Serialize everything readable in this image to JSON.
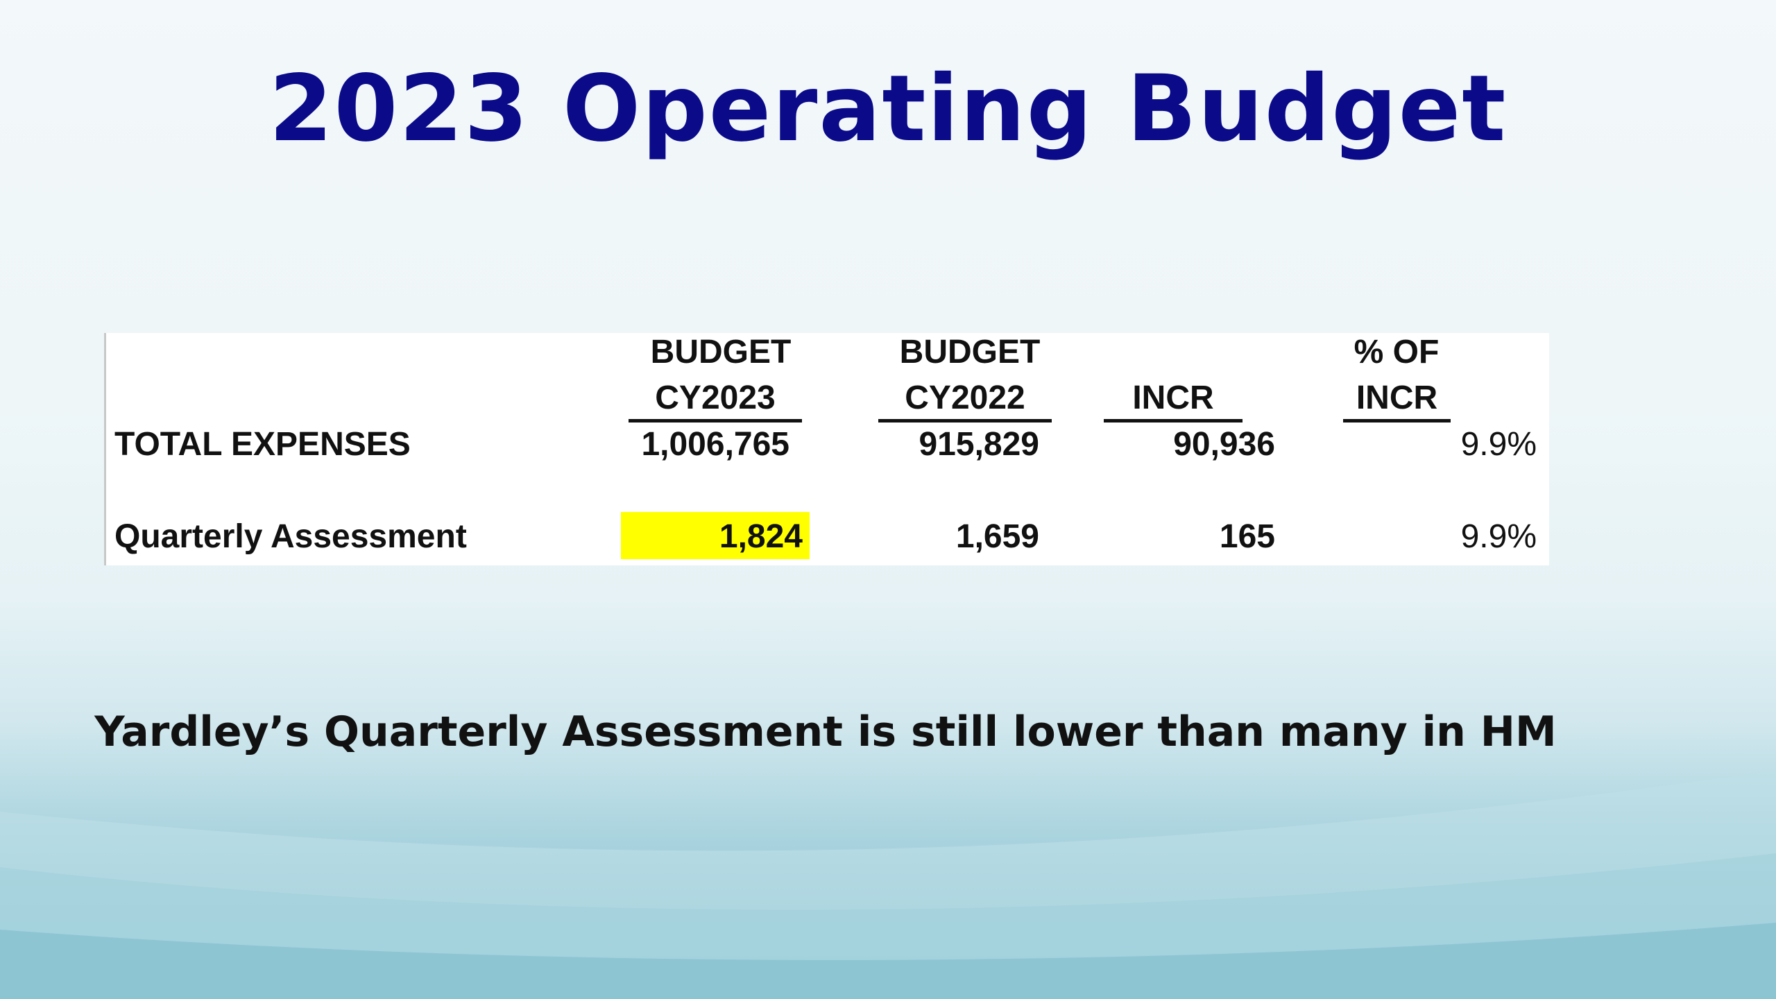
{
  "slide": {
    "title": "2023 Operating Budget",
    "note": "Yardley’s Quarterly Assessment is still lower than many in HM"
  },
  "table": {
    "headers": {
      "budget_2023_line1": "BUDGET",
      "budget_2023_line2": "CY2023",
      "budget_2022_line1": "BUDGET",
      "budget_2022_line2": "CY2022",
      "incr": "INCR",
      "pct_line1": "% OF",
      "pct_line2": "INCR"
    },
    "rows": [
      {
        "label": "TOTAL EXPENSES",
        "budget_2023": "1,006,765",
        "budget_2022": "915,829",
        "incr": "90,936",
        "pct": "9.9%"
      },
      {
        "label": "Quarterly Assessment",
        "budget_2023": "1,824",
        "budget_2022": "1,659",
        "incr": "165",
        "pct": "9.9%"
      }
    ]
  },
  "colors": {
    "title": "#0b0b8a",
    "highlight": "#ffff00"
  }
}
